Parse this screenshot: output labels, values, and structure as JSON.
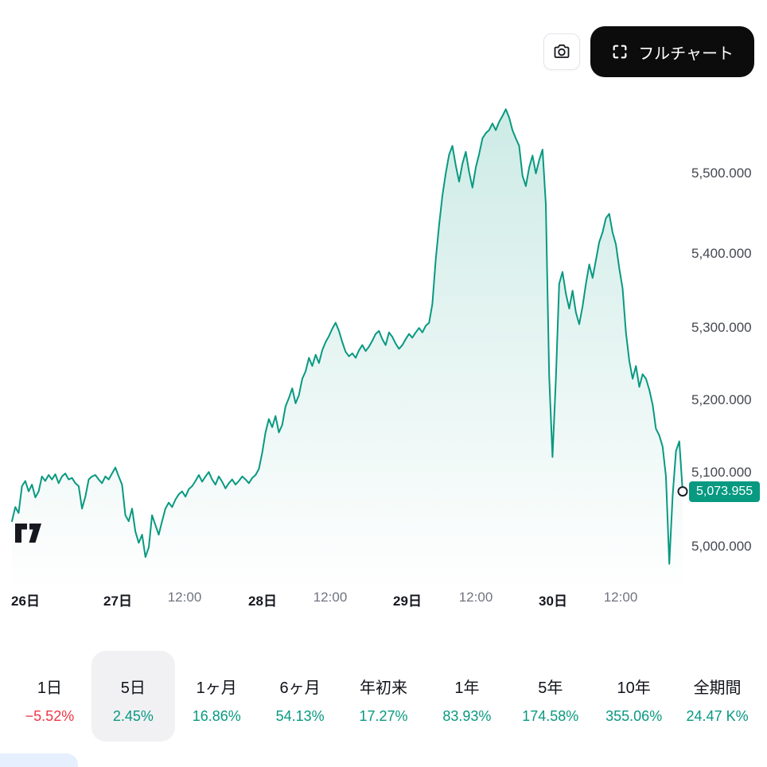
{
  "toolbar": {
    "full_chart_label": "フルチャート"
  },
  "chart_data": {
    "type": "area",
    "symbol_context": "5-day intraday price chart",
    "line_color": "#089981",
    "fill_color": "#089981",
    "current_price": "5,073.955",
    "y_axis": {
      "labels": [
        "5,500.000",
        "5,400.000",
        "5,300.000",
        "5,200.000",
        "5,100.000",
        "5,000.000"
      ],
      "min": 4960,
      "max": 5620
    },
    "x_axis": {
      "labels": [
        "26日",
        "27日",
        "12:00",
        "28日",
        "12:00",
        "29日",
        "12:00",
        "30日",
        "12:00"
      ]
    },
    "prices": [
      5034,
      5053,
      5045,
      5081,
      5088,
      5074,
      5083,
      5066,
      5074,
      5094,
      5088,
      5096,
      5090,
      5097,
      5085,
      5094,
      5098,
      5090,
      5092,
      5085,
      5081,
      5051,
      5067,
      5090,
      5094,
      5096,
      5090,
      5085,
      5094,
      5090,
      5098,
      5106,
      5094,
      5083,
      5042,
      5034,
      5051,
      5020,
      5005,
      5016,
      4986,
      4999,
      5042,
      5029,
      5016,
      5034,
      5051,
      5059,
      5053,
      5063,
      5070,
      5074,
      5067,
      5077,
      5081,
      5088,
      5096,
      5087,
      5094,
      5100,
      5090,
      5083,
      5094,
      5087,
      5078,
      5085,
      5090,
      5083,
      5088,
      5094,
      5090,
      5085,
      5092,
      5096,
      5104,
      5126,
      5153,
      5171,
      5160,
      5175,
      5153,
      5163,
      5188,
      5199,
      5212,
      5192,
      5203,
      5225,
      5235,
      5253,
      5242,
      5257,
      5246,
      5263,
      5274,
      5282,
      5292,
      5300,
      5289,
      5274,
      5261,
      5255,
      5259,
      5253,
      5263,
      5270,
      5262,
      5268,
      5276,
      5285,
      5289,
      5278,
      5270,
      5287,
      5281,
      5272,
      5265,
      5270,
      5278,
      5285,
      5280,
      5287,
      5293,
      5287,
      5296,
      5300,
      5325,
      5384,
      5430,
      5470,
      5500,
      5525,
      5537,
      5511,
      5489,
      5513,
      5529,
      5502,
      5481,
      5508,
      5526,
      5547,
      5554,
      5558,
      5567,
      5558,
      5569,
      5577,
      5586,
      5575,
      5558,
      5547,
      5537,
      5497,
      5483,
      5508,
      5524,
      5500,
      5518,
      5532,
      5459,
      5230,
      5120,
      5223,
      5352,
      5368,
      5339,
      5319,
      5343,
      5314,
      5298,
      5322,
      5352,
      5378,
      5360,
      5384,
      5408,
      5421,
      5440,
      5446,
      5421,
      5405,
      5373,
      5346,
      5287,
      5249,
      5225,
      5242,
      5214,
      5231,
      5225,
      5210,
      5190,
      5158,
      5149,
      5134,
      5094,
      4977,
      5068,
      5128,
      5141,
      5073.955
    ]
  },
  "periods": [
    {
      "label": "1日",
      "change": "−5.52%",
      "direction": "down",
      "selected": false
    },
    {
      "label": "5日",
      "change": "2.45%",
      "direction": "up",
      "selected": true
    },
    {
      "label": "1ヶ月",
      "change": "16.86%",
      "direction": "up",
      "selected": false
    },
    {
      "label": "6ヶ月",
      "change": "54.13%",
      "direction": "up",
      "selected": false
    },
    {
      "label": "年初来",
      "change": "17.27%",
      "direction": "up",
      "selected": false
    },
    {
      "label": "1年",
      "change": "83.93%",
      "direction": "up",
      "selected": false
    },
    {
      "label": "5年",
      "change": "174.58%",
      "direction": "up",
      "selected": false
    },
    {
      "label": "10年",
      "change": "355.06%",
      "direction": "up",
      "selected": false
    },
    {
      "label": "全期間",
      "change": "24.47 K%",
      "direction": "up",
      "selected": false
    }
  ]
}
